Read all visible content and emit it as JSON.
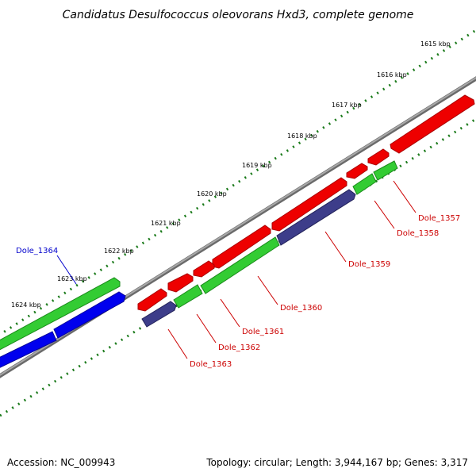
{
  "title": "Candidatus Desulfococcus oleovorans Hxd3, complete genome",
  "footer": {
    "accession": "Accession: NC_009943",
    "summary": "Topology: circular; Length: 3,944,167 bp; Genes: 3,317"
  },
  "ruler_labels": [
    "1615 kbp",
    "1616 kbp",
    "1617 kbp",
    "1618 kbp",
    "1619 kbp",
    "1620 kbp",
    "1621 kbp",
    "1622 kbp",
    "1623 kbp",
    "1624 kbp"
  ],
  "gene_labels": [
    {
      "text": "Dole_1357",
      "color": "#cc0000"
    },
    {
      "text": "Dole_1358",
      "color": "#cc0000"
    },
    {
      "text": "Dole_1359",
      "color": "#cc0000"
    },
    {
      "text": "Dole_1360",
      "color": "#cc0000"
    },
    {
      "text": "Dole_1361",
      "color": "#cc0000"
    },
    {
      "text": "Dole_1362",
      "color": "#cc0000"
    },
    {
      "text": "Dole_1363",
      "color": "#cc0000"
    },
    {
      "text": "Dole_1364",
      "color": "#0000cc"
    }
  ],
  "colors": {
    "backbone": "#8a8a8a",
    "ticks": "#1a7a1a",
    "red": "#ee0000",
    "green": "#33cc33",
    "navy": "#3d3d8a",
    "blue": "#0000ee"
  }
}
